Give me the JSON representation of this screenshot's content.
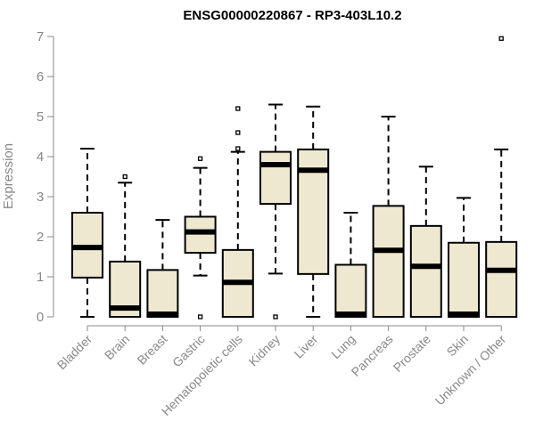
{
  "chart_data": {
    "type": "box",
    "title": "ENSG00000220867 - RP3-403L10.2",
    "ylabel": "Expression",
    "xlabel": "",
    "ylim": [
      0,
      7
    ],
    "yticks": [
      0,
      1,
      2,
      3,
      4,
      5,
      6,
      7
    ],
    "grid": false,
    "colors": {
      "box_fill": "#efe8d0",
      "stroke": "#000000",
      "axis_text": "#888888"
    },
    "categories": [
      "Bladder",
      "Brain",
      "Breast",
      "Gastric",
      "Hematopoietic cells",
      "Kidney",
      "Liver",
      "Lung",
      "Pancreas",
      "Prostate",
      "Skin",
      "Unknown / Other"
    ],
    "boxes": [
      {
        "whisker_low": 0,
        "q1": 0.98,
        "median": 1.73,
        "q3": 2.6,
        "whisker_high": 4.2,
        "outliers": []
      },
      {
        "whisker_low": 0,
        "q1": 0,
        "median": 0.22,
        "q3": 1.38,
        "whisker_high": 3.35,
        "outliers": [
          3.5
        ]
      },
      {
        "whisker_low": 0,
        "q1": 0,
        "median": 0.02,
        "q3": 1.17,
        "whisker_high": 2.42,
        "outliers": []
      },
      {
        "whisker_low": 1.03,
        "q1": 1.6,
        "median": 2.12,
        "q3": 2.5,
        "whisker_high": 3.72,
        "outliers": [
          3.95,
          0
        ]
      },
      {
        "whisker_low": 0,
        "q1": 0,
        "median": 0.86,
        "q3": 1.67,
        "whisker_high": 4.12,
        "outliers": [
          4.2,
          4.6,
          5.2
        ]
      },
      {
        "whisker_low": 1.08,
        "q1": 2.82,
        "median": 3.8,
        "q3": 4.12,
        "whisker_high": 5.3,
        "outliers": [
          0
        ]
      },
      {
        "whisker_low": 0,
        "q1": 1.07,
        "median": 3.66,
        "q3": 4.18,
        "whisker_high": 5.25,
        "outliers": []
      },
      {
        "whisker_low": 0,
        "q1": 0,
        "median": 0.02,
        "q3": 1.3,
        "whisker_high": 2.6,
        "outliers": []
      },
      {
        "whisker_low": 0,
        "q1": 0,
        "median": 1.66,
        "q3": 2.77,
        "whisker_high": 5.0,
        "outliers": []
      },
      {
        "whisker_low": 0,
        "q1": 0,
        "median": 1.26,
        "q3": 2.27,
        "whisker_high": 3.75,
        "outliers": []
      },
      {
        "whisker_low": 0,
        "q1": 0,
        "median": 0.02,
        "q3": 1.85,
        "whisker_high": 2.97,
        "outliers": []
      },
      {
        "whisker_low": 0,
        "q1": 0,
        "median": 1.16,
        "q3": 1.87,
        "whisker_high": 4.18,
        "outliers": [
          6.95
        ]
      }
    ]
  }
}
